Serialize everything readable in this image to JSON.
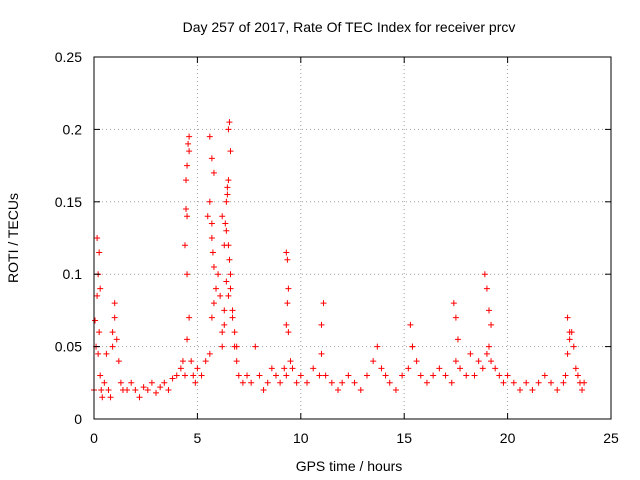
{
  "chart_data": {
    "type": "scatter",
    "title": "Day 257 of 2017, Rate Of TEC Index for receiver prcv",
    "xlabel": "GPS time / hours",
    "ylabel": "ROTI / TECUs",
    "xlim": [
      0,
      25
    ],
    "ylim": [
      0,
      0.25
    ],
    "x_ticks": [
      0,
      5,
      10,
      15,
      20,
      25
    ],
    "x_tick_labels": [
      "0",
      "5",
      "10",
      "15",
      "20",
      "25"
    ],
    "y_ticks": [
      0,
      0.05,
      0.1,
      0.15,
      0.2,
      0.25
    ],
    "y_tick_labels": [
      "0",
      "0.05",
      "0.1",
      "0.15",
      "0.2",
      "0.25"
    ],
    "grid": true,
    "marker": "+",
    "marker_color": "#ff0000",
    "series": [
      {
        "name": "ROTI",
        "x": [
          0.0,
          0.05,
          0.1,
          0.15,
          0.2,
          0.25,
          0.3,
          0.35,
          0.4,
          0.5,
          0.6,
          0.7,
          0.8,
          0.9,
          1.0,
          1.1,
          1.2,
          1.3,
          1.4,
          1.6,
          1.8,
          2.0,
          2.2,
          2.4,
          2.6,
          2.8,
          3.0,
          3.2,
          3.4,
          3.6,
          3.8,
          4.0,
          4.2,
          4.3,
          4.4,
          4.5,
          4.6,
          4.7,
          4.8,
          4.9,
          5.0,
          5.2,
          5.4,
          5.6,
          5.7,
          5.8,
          5.9,
          6.0,
          6.1,
          6.2,
          6.3,
          6.4,
          6.5,
          6.6,
          6.7,
          6.8,
          6.9,
          7.0,
          7.2,
          7.4,
          7.6,
          7.8,
          8.0,
          8.2,
          8.4,
          8.6,
          8.8,
          9.0,
          9.2,
          9.3,
          9.4,
          9.5,
          9.6,
          9.8,
          10.0,
          10.3,
          10.6,
          10.9,
          11.0,
          11.2,
          11.5,
          11.8,
          12.0,
          12.3,
          12.6,
          12.9,
          13.2,
          13.5,
          13.7,
          13.9,
          14.1,
          14.3,
          14.6,
          14.9,
          15.2,
          15.4,
          15.6,
          15.8,
          16.1,
          16.4,
          16.7,
          17.0,
          17.3,
          17.5,
          17.7,
          18.0,
          18.2,
          18.4,
          18.6,
          18.8,
          19.0,
          19.1,
          19.2,
          19.4,
          19.6,
          19.8,
          20.0,
          20.3,
          20.6,
          20.9,
          21.2,
          21.5,
          21.8,
          22.1,
          22.4,
          22.7,
          22.8,
          22.9,
          23.0,
          23.1,
          23.2,
          23.3,
          23.4,
          23.5,
          23.6,
          23.7,
          0.15,
          0.25,
          0.2,
          0.3,
          0.9,
          1.0,
          4.4,
          4.45,
          4.5,
          4.55,
          4.6,
          4.5,
          4.45,
          4.6,
          4.5,
          5.5,
          5.6,
          5.7,
          5.8,
          5.6,
          5.7,
          5.75,
          5.8,
          5.7,
          6.2,
          6.3,
          6.35,
          6.4,
          6.45,
          6.5,
          6.55,
          6.6,
          6.5,
          6.45,
          6.4,
          6.55,
          6.6,
          6.5,
          6.3,
          6.2,
          6.7,
          6.8,
          6.9,
          9.3,
          9.35,
          9.4,
          9.35,
          9.3,
          11.0,
          11.1,
          17.4,
          17.5,
          17.6,
          18.9,
          19.0,
          19.1,
          19.2,
          15.3,
          15.4,
          22.9,
          23.0
        ],
        "y": [
          0.02,
          0.068,
          0.05,
          0.085,
          0.045,
          0.06,
          0.03,
          0.02,
          0.015,
          0.025,
          0.045,
          0.02,
          0.015,
          0.05,
          0.08,
          0.055,
          0.04,
          0.025,
          0.02,
          0.02,
          0.025,
          0.02,
          0.015,
          0.022,
          0.02,
          0.025,
          0.018,
          0.022,
          0.025,
          0.02,
          0.028,
          0.03,
          0.035,
          0.04,
          0.03,
          0.055,
          0.07,
          0.04,
          0.03,
          0.025,
          0.035,
          0.03,
          0.04,
          0.045,
          0.07,
          0.08,
          0.09,
          0.1,
          0.085,
          0.05,
          0.075,
          0.095,
          0.12,
          0.1,
          0.07,
          0.05,
          0.04,
          0.03,
          0.025,
          0.03,
          0.025,
          0.05,
          0.03,
          0.02,
          0.025,
          0.035,
          0.03,
          0.025,
          0.035,
          0.03,
          0.06,
          0.04,
          0.035,
          0.025,
          0.03,
          0.025,
          0.035,
          0.03,
          0.045,
          0.03,
          0.025,
          0.02,
          0.025,
          0.03,
          0.025,
          0.02,
          0.03,
          0.04,
          0.05,
          0.035,
          0.03,
          0.025,
          0.02,
          0.03,
          0.035,
          0.05,
          0.04,
          0.03,
          0.025,
          0.03,
          0.035,
          0.03,
          0.025,
          0.04,
          0.035,
          0.03,
          0.045,
          0.03,
          0.04,
          0.035,
          0.045,
          0.05,
          0.04,
          0.035,
          0.03,
          0.025,
          0.03,
          0.025,
          0.02,
          0.025,
          0.02,
          0.025,
          0.03,
          0.025,
          0.02,
          0.025,
          0.03,
          0.045,
          0.055,
          0.06,
          0.05,
          0.035,
          0.03,
          0.025,
          0.02,
          0.025,
          0.125,
          0.115,
          0.1,
          0.09,
          0.06,
          0.07,
          0.12,
          0.145,
          0.175,
          0.19,
          0.195,
          0.14,
          0.165,
          0.185,
          0.1,
          0.14,
          0.195,
          0.18,
          0.17,
          0.15,
          0.135,
          0.115,
          0.105,
          0.125,
          0.14,
          0.12,
          0.135,
          0.15,
          0.16,
          0.2,
          0.205,
          0.185,
          0.165,
          0.155,
          0.13,
          0.11,
          0.09,
          0.085,
          0.065,
          0.06,
          0.075,
          0.06,
          0.05,
          0.115,
          0.11,
          0.09,
          0.08,
          0.065,
          0.065,
          0.08,
          0.08,
          0.07,
          0.055,
          0.1,
          0.09,
          0.075,
          0.065,
          0.065,
          0.05,
          0.07,
          0.06
        ]
      }
    ]
  }
}
